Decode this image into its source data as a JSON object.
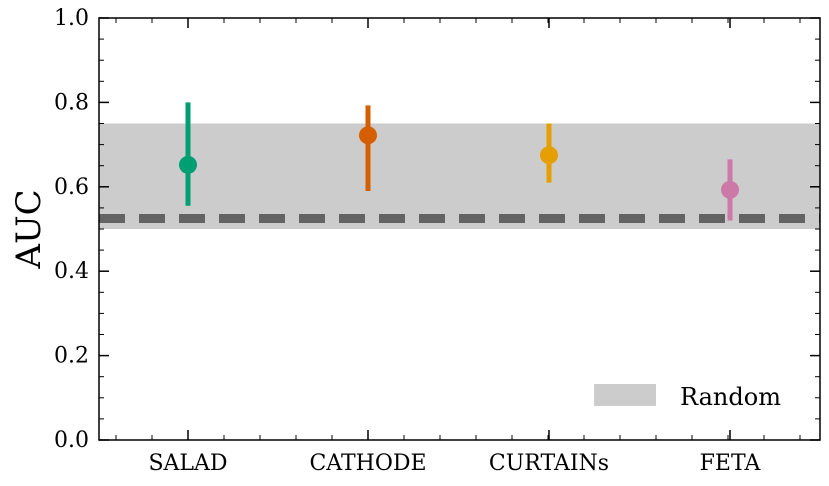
{
  "chart_data": {
    "type": "scatter",
    "ylabel": "AUC",
    "xlabel": "",
    "ylim": [
      0.0,
      1.0
    ],
    "yticks": [
      "0.0",
      "0.2",
      "0.4",
      "0.6",
      "0.8",
      "1.0"
    ],
    "categories": [
      "SALAD",
      "CATHODE",
      "CURTAINs",
      "FETA"
    ],
    "series": [
      {
        "values": [
          0.652,
          0.722,
          0.675,
          0.593
        ],
        "err_low": [
          0.555,
          0.59,
          0.61,
          0.52
        ],
        "err_high": [
          0.8,
          0.793,
          0.75,
          0.665
        ],
        "colors": [
          "#009e73",
          "#d55e00",
          "#e69f00",
          "#cc79a7"
        ]
      }
    ],
    "random_band": {
      "low": 0.5,
      "high": 0.75,
      "color": "#cccccc"
    },
    "random_line": {
      "value": 0.525,
      "style": "dashed",
      "color": "#636363"
    },
    "legend": {
      "position": "bottom-right",
      "entries": [
        "Random"
      ]
    },
    "grid": false
  }
}
